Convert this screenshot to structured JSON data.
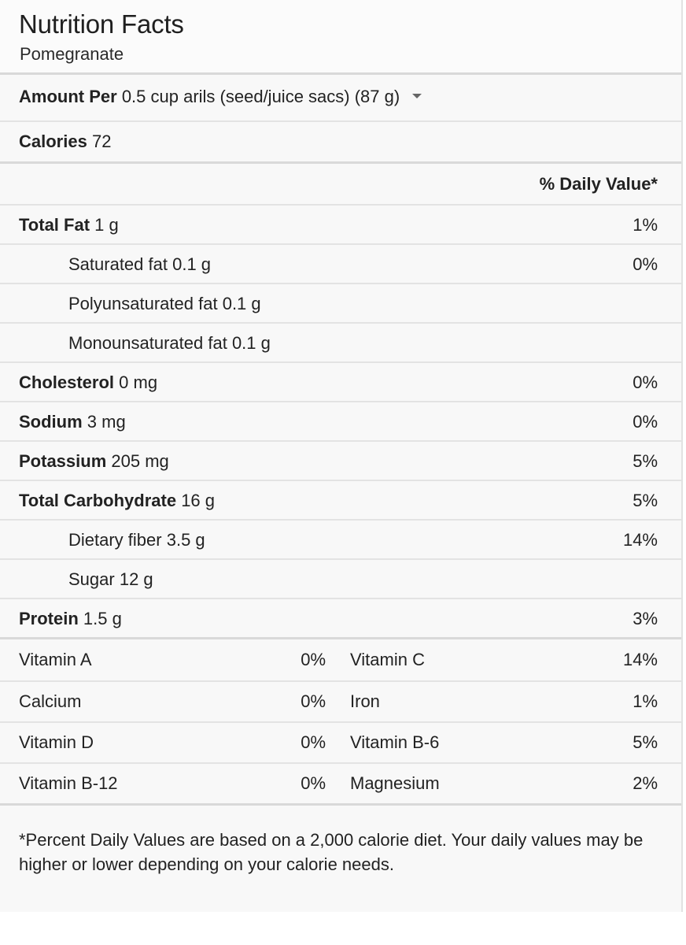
{
  "header": {
    "title": "Nutrition Facts",
    "subtitle": "Pomegranate"
  },
  "serving": {
    "label": "Amount Per",
    "value": "0.5 cup arils (seed/juice sacs) (87 g)"
  },
  "calories": {
    "label": "Calories",
    "value": "72"
  },
  "daily_value_header": "% Daily Value*",
  "nutrients": [
    {
      "name": "Total Fat",
      "amount": "1 g",
      "dv": "1%"
    },
    {
      "name": "Saturated fat",
      "amount": "0.1 g",
      "dv": "0%"
    },
    {
      "name": "Polyunsaturated fat",
      "amount": "0.1 g",
      "dv": ""
    },
    {
      "name": "Monounsaturated fat",
      "amount": "0.1 g",
      "dv": ""
    },
    {
      "name": "Cholesterol",
      "amount": "0 mg",
      "dv": "0%"
    },
    {
      "name": "Sodium",
      "amount": "3 mg",
      "dv": "0%"
    },
    {
      "name": "Potassium",
      "amount": "205 mg",
      "dv": "5%"
    },
    {
      "name": "Total Carbohydrate",
      "amount": "16 g",
      "dv": "5%"
    },
    {
      "name": "Dietary fiber",
      "amount": "3.5 g",
      "dv": "14%"
    },
    {
      "name": "Sugar",
      "amount": "12 g",
      "dv": ""
    },
    {
      "name": "Protein",
      "amount": "1.5 g",
      "dv": "3%"
    }
  ],
  "vitamins": [
    {
      "left_name": "Vitamin A",
      "left_value": "0%",
      "right_name": "Vitamin C",
      "right_value": "14%"
    },
    {
      "left_name": "Calcium",
      "left_value": "0%",
      "right_name": "Iron",
      "right_value": "1%"
    },
    {
      "left_name": "Vitamin D",
      "left_value": "0%",
      "right_name": "Vitamin B-6",
      "right_value": "5%"
    },
    {
      "left_name": "Vitamin B-12",
      "left_value": "0%",
      "right_name": "Magnesium",
      "right_value": "2%"
    }
  ],
  "footnote": "*Percent Daily Values are based on a 2,000 calorie diet. Your daily values may be higher or lower depending on your calorie needs."
}
